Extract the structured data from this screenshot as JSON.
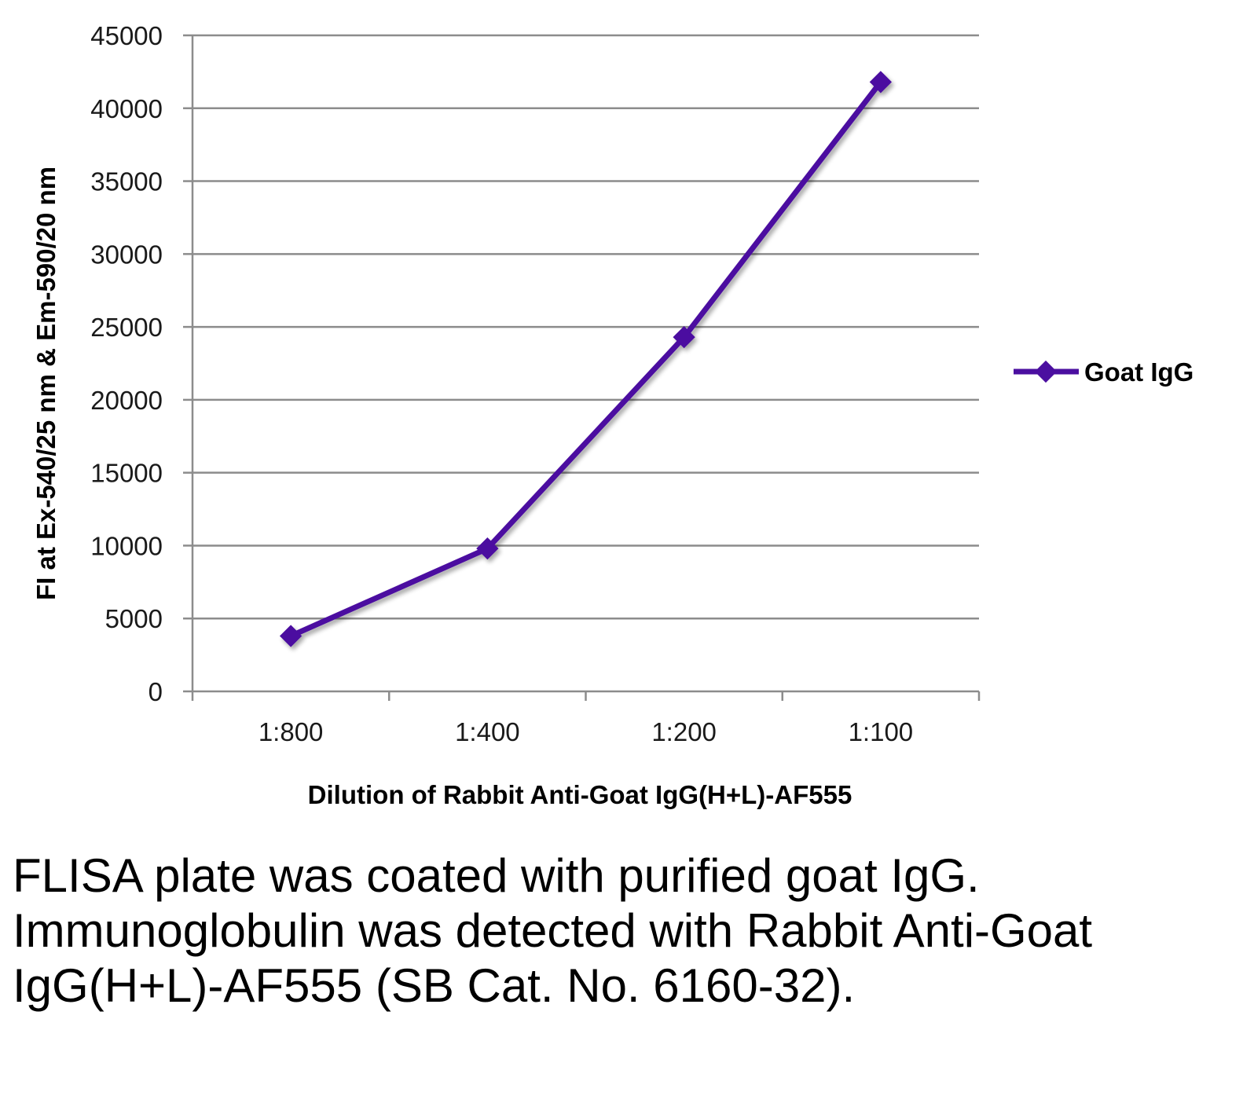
{
  "chart_data": {
    "type": "line",
    "categories": [
      "1:800",
      "1:400",
      "1:200",
      "1:100"
    ],
    "series": [
      {
        "name": "Goat IgG",
        "values": [
          3800,
          9800,
          24300,
          41800
        ]
      }
    ],
    "xlabel": "Dilution of Rabbit Anti-Goat IgG(H+L)-AF555",
    "ylabel": "FI at Ex-540/25 nm & Em-590/20 nm",
    "ylim": [
      0,
      45000
    ],
    "yticks": [
      0,
      5000,
      10000,
      15000,
      20000,
      25000,
      30000,
      35000,
      40000,
      45000
    ],
    "grid": "horizontal",
    "legend": "right",
    "series_color": "#4b0fa0",
    "grid_color": "#8c8c8c"
  },
  "caption": "FLISA plate was coated with purified goat IgG.  Immunoglobulin was detected with Rabbit Anti-Goat IgG(H+L)-AF555 (SB Cat. No. 6160-32)."
}
